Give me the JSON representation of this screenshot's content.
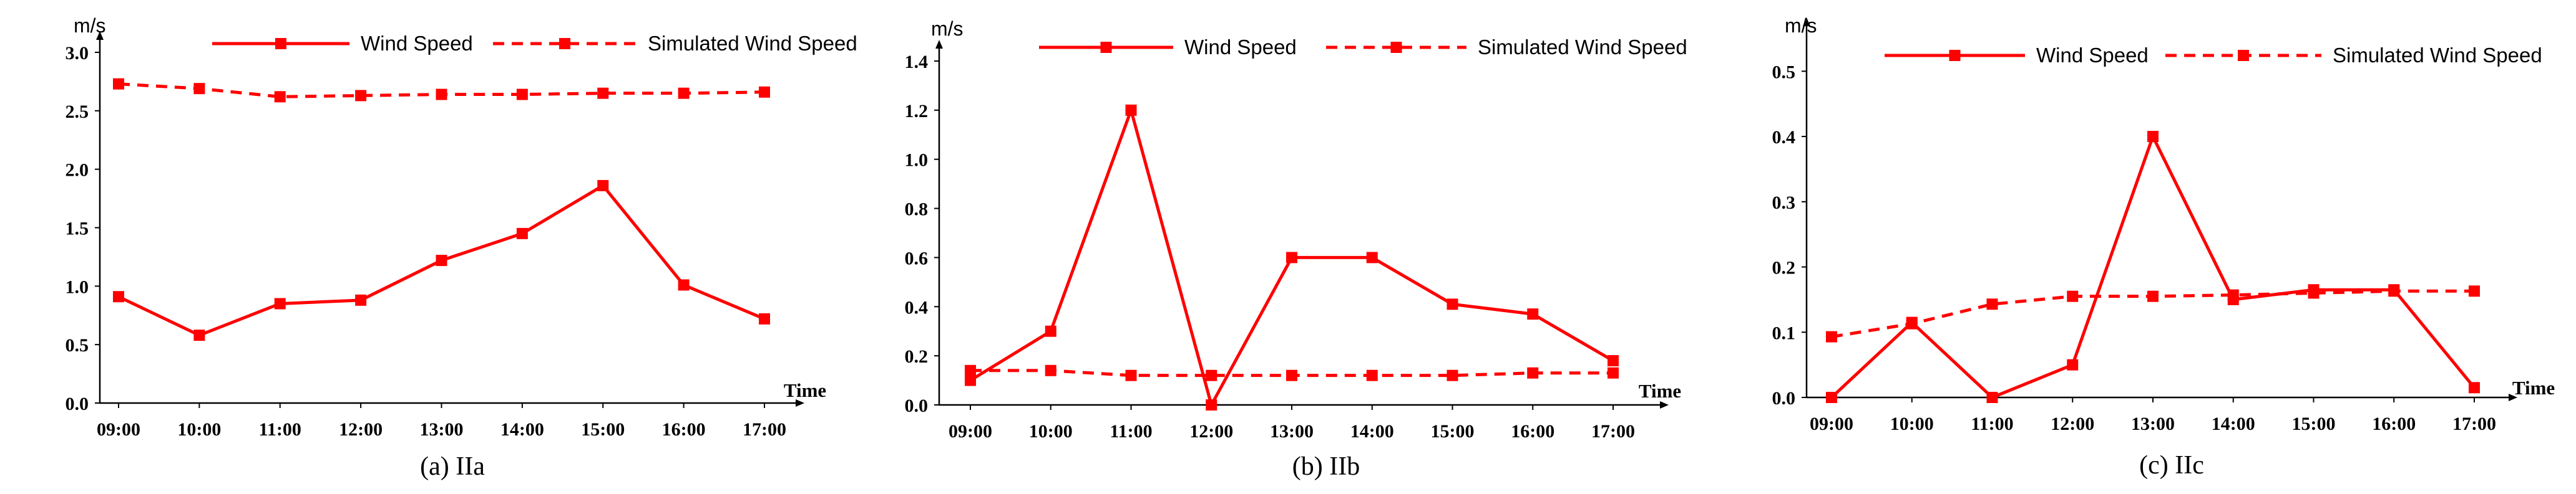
{
  "colors": {
    "series": "#ff0000",
    "axis": "#000000",
    "text": "#000000"
  },
  "chart_data": [
    {
      "type": "line",
      "caption": "(a) IIa",
      "ylabel": "m/s",
      "xlabel": "Time",
      "categories": [
        "09:00",
        "10:00",
        "11:00",
        "12:00",
        "13:00",
        "14:00",
        "15:00",
        "16:00",
        "17:00"
      ],
      "ylim": [
        0,
        3.0
      ],
      "yticks": [
        "0.0",
        "0.5",
        "1.0",
        "1.5",
        "2.0",
        "2.5",
        "3.0"
      ],
      "series": [
        {
          "name": "Wind Speed",
          "style": "solid",
          "values": [
            0.91,
            0.58,
            0.85,
            0.88,
            1.22,
            1.45,
            1.86,
            1.01,
            0.72
          ]
        },
        {
          "name": "Simulated Wind Speed",
          "style": "dashed",
          "values": [
            2.73,
            2.69,
            2.62,
            2.63,
            2.64,
            2.64,
            2.65,
            2.65,
            2.66
          ]
        }
      ]
    },
    {
      "type": "line",
      "caption": "(b) IIb",
      "ylabel": "m/s",
      "xlabel": "Time",
      "categories": [
        "09:00",
        "10:00",
        "11:00",
        "12:00",
        "13:00",
        "14:00",
        "15:00",
        "16:00",
        "17:00"
      ],
      "ylim": [
        0,
        1.4
      ],
      "yticks": [
        "0.0",
        "0.2",
        "0.4",
        "0.6",
        "0.8",
        "1.0",
        "1.2",
        "1.4"
      ],
      "series": [
        {
          "name": "Wind Speed",
          "style": "solid",
          "values": [
            0.1,
            0.3,
            1.2,
            0.0,
            0.6,
            0.6,
            0.41,
            0.37,
            0.18
          ]
        },
        {
          "name": "Simulated Wind Speed",
          "style": "dashed",
          "values": [
            0.14,
            0.14,
            0.12,
            0.12,
            0.12,
            0.12,
            0.12,
            0.13,
            0.13
          ]
        }
      ]
    },
    {
      "type": "line",
      "caption": "(c) IIc",
      "ylabel": "m/s",
      "xlabel": "Time",
      "categories": [
        "09:00",
        "10:00",
        "11:00",
        "12:00",
        "13:00",
        "14:00",
        "15:00",
        "16:00",
        "17:00"
      ],
      "ylim": [
        0,
        0.55
      ],
      "yticks": [
        "0.0",
        "0.1",
        "0.2",
        "0.3",
        "0.4",
        "0.5"
      ],
      "series": [
        {
          "name": "Wind Speed",
          "style": "solid",
          "values": [
            0.0,
            0.115,
            0.0,
            0.05,
            0.4,
            0.15,
            0.165,
            0.165,
            0.015
          ]
        },
        {
          "name": "Simulated Wind Speed",
          "style": "dashed",
          "values": [
            0.093,
            0.113,
            0.143,
            0.155,
            0.155,
            0.157,
            0.16,
            0.163,
            0.163
          ]
        }
      ]
    }
  ]
}
